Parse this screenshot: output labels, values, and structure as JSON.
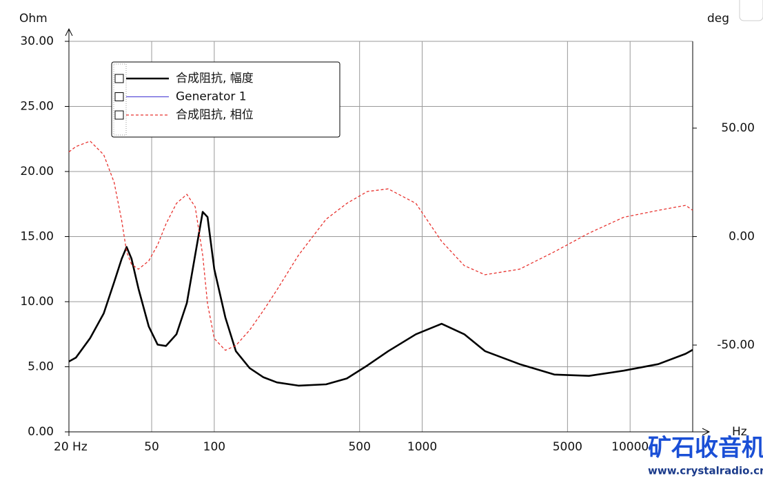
{
  "chart_data": {
    "type": "line",
    "y_unit": "Ohm",
    "y2_unit": "deg",
    "x_unit": "Hz",
    "log_x": true,
    "grid": true,
    "x": [
      20,
      21.6,
      25.3,
      29.4,
      33,
      35.9,
      37.9,
      40,
      43.2,
      48.4,
      53.4,
      58.6,
      65.8,
      73.8,
      81,
      88,
      92.8,
      100,
      113,
      127,
      148,
      172,
      200,
      254,
      345,
      434,
      545,
      687,
      933,
      1240,
      1594,
      2005,
      2943,
      4320,
      6340,
      9300,
      13650,
      18500,
      20000
    ],
    "series": [
      {
        "name": "合成阻抗, 幅度",
        "color": "#000000",
        "style": "solid",
        "values": [
          5.4,
          5.7,
          7.2,
          9.1,
          11.5,
          13.3,
          14.2,
          13.3,
          11.0,
          8.1,
          6.7,
          6.6,
          7.5,
          9.9,
          13.6,
          16.9,
          16.5,
          12.5,
          8.8,
          6.2,
          4.9,
          4.2,
          3.8,
          3.55,
          3.65,
          4.1,
          5.1,
          6.2,
          7.5,
          8.3,
          7.5,
          6.2,
          5.2,
          4.4,
          4.3,
          4.7,
          5.2,
          6.0,
          6.3
        ]
      },
      {
        "name": "Generator 1",
        "color": "#5b4fd8",
        "style": "solid",
        "values": [
          null,
          null,
          null,
          null,
          null,
          null,
          null,
          null,
          null,
          null,
          null,
          null,
          null,
          null,
          null,
          null,
          null,
          null,
          null,
          null,
          null,
          null,
          null,
          null,
          null,
          null,
          null,
          null,
          null,
          null,
          null,
          null,
          null,
          null,
          null,
          null,
          null,
          null,
          null
        ]
      },
      {
        "name": "合成阻抗, 相位",
        "color": "#e8322e",
        "style": "dashed",
        "axis": "y2",
        "values": [
          39,
          41.5,
          44,
          37.7,
          25,
          7.3,
          -7,
          -12.8,
          -15,
          -11.2,
          -3.8,
          5.8,
          15.3,
          19.5,
          13.7,
          -8.6,
          -31,
          -47,
          -52.4,
          -50.2,
          -43.1,
          -34.2,
          -24.6,
          -8.6,
          8,
          15.3,
          20.8,
          22,
          15.3,
          -2.2,
          -13.4,
          -17.6,
          -15,
          -7,
          1.6,
          8.9,
          12.1,
          14.4,
          12.1
        ]
      }
    ],
    "xlim": [
      20,
      20000
    ],
    "xticks": [
      {
        "value": 20,
        "label": "20 Hz"
      },
      50,
      100,
      500,
      1000,
      5000,
      10000
    ],
    "ylim": [
      0,
      30
    ],
    "yticks": [
      {
        "value": 0,
        "label": "0.00"
      },
      {
        "value": 5,
        "label": "5.00"
      },
      {
        "value": 10,
        "label": "10.00"
      },
      {
        "value": 15,
        "label": "15.00"
      },
      {
        "value": 20,
        "label": "20.00"
      },
      {
        "value": 25,
        "label": "25.00"
      },
      {
        "value": 30,
        "label": "30.00"
      }
    ],
    "y2lim": [
      -90,
      90
    ],
    "y2ticks": [
      {
        "value": -50,
        "label": "-50.00"
      },
      {
        "value": 0,
        "label": "0.00"
      },
      {
        "value": 50,
        "label": "50.00"
      }
    ]
  },
  "watermark": {
    "title": "矿石收音机",
    "url": "www.crystalradio.cn"
  }
}
